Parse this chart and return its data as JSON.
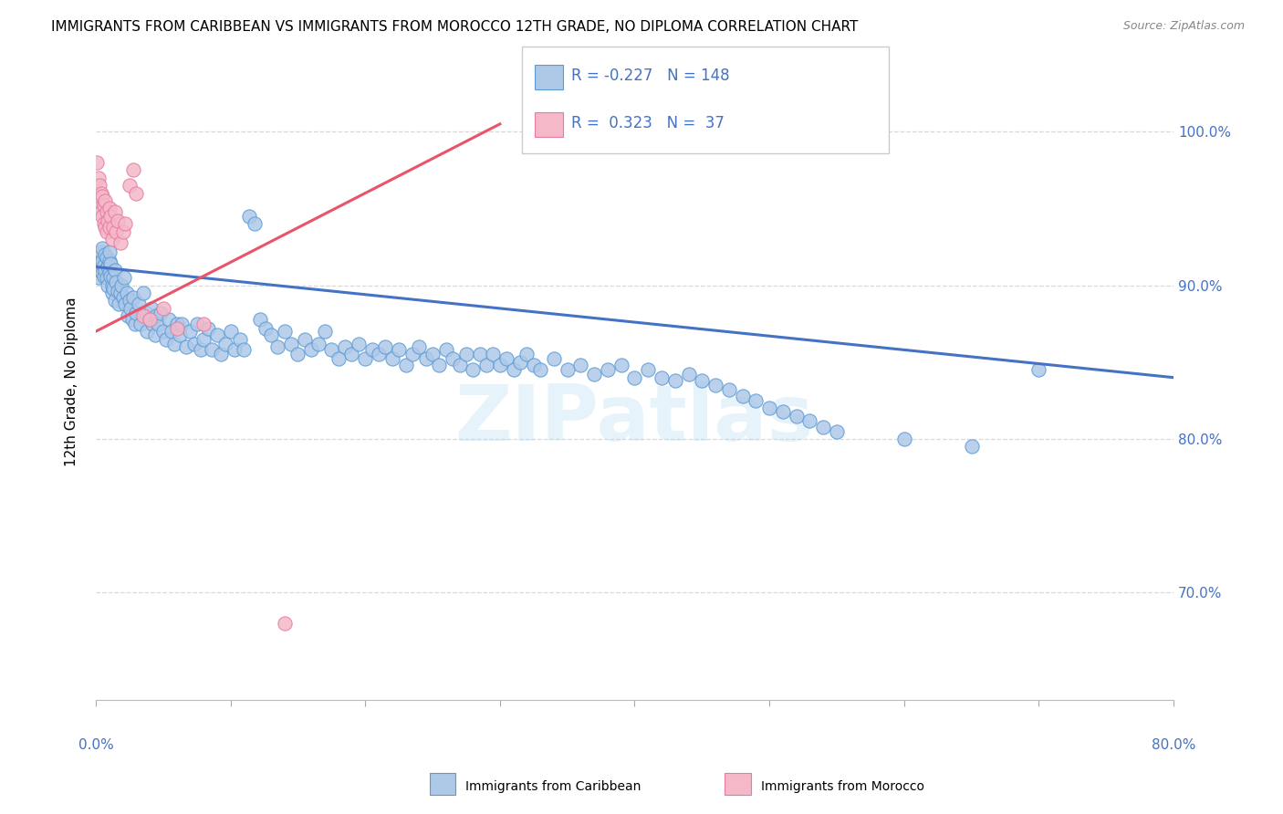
{
  "title": "IMMIGRANTS FROM CARIBBEAN VS IMMIGRANTS FROM MOROCCO 12TH GRADE, NO DIPLOMA CORRELATION CHART",
  "source": "Source: ZipAtlas.com",
  "ylabel": "12th Grade, No Diploma",
  "watermark": "ZIPatlas",
  "blue_color": "#aec8e8",
  "pink_color": "#f4b8c8",
  "blue_edge_color": "#5b9bd5",
  "pink_edge_color": "#e87aa0",
  "blue_line_color": "#4472c4",
  "pink_line_color": "#e8546a",
  "legend_blue_fill": "#aec8e8",
  "legend_pink_fill": "#f4b8c8",
  "tick_color": "#4472c4",
  "grid_color": "#d8d8d8",
  "xlim": [
    0.0,
    0.8
  ],
  "ylim": [
    0.63,
    1.045
  ],
  "ytick_vals": [
    0.7,
    0.8,
    0.9,
    1.0
  ],
  "blue_trend_x": [
    0.0,
    0.8
  ],
  "blue_trend_y": [
    0.912,
    0.84
  ],
  "pink_trend_x": [
    0.0,
    0.3
  ],
  "pink_trend_y": [
    0.87,
    1.005
  ],
  "blue_scatter_x": [
    0.001,
    0.002,
    0.002,
    0.003,
    0.003,
    0.004,
    0.004,
    0.005,
    0.005,
    0.005,
    0.006,
    0.006,
    0.007,
    0.007,
    0.008,
    0.008,
    0.009,
    0.009,
    0.01,
    0.01,
    0.01,
    0.011,
    0.011,
    0.012,
    0.012,
    0.013,
    0.013,
    0.014,
    0.014,
    0.015,
    0.016,
    0.017,
    0.018,
    0.019,
    0.02,
    0.021,
    0.022,
    0.023,
    0.024,
    0.025,
    0.026,
    0.027,
    0.028,
    0.029,
    0.03,
    0.032,
    0.033,
    0.035,
    0.037,
    0.038,
    0.04,
    0.041,
    0.042,
    0.044,
    0.045,
    0.046,
    0.048,
    0.05,
    0.052,
    0.054,
    0.056,
    0.058,
    0.06,
    0.062,
    0.064,
    0.067,
    0.07,
    0.073,
    0.075,
    0.078,
    0.08,
    0.083,
    0.086,
    0.09,
    0.093,
    0.096,
    0.1,
    0.103,
    0.107,
    0.11,
    0.114,
    0.118,
    0.122,
    0.126,
    0.13,
    0.135,
    0.14,
    0.145,
    0.15,
    0.155,
    0.16,
    0.165,
    0.17,
    0.175,
    0.18,
    0.185,
    0.19,
    0.195,
    0.2,
    0.205,
    0.21,
    0.215,
    0.22,
    0.225,
    0.23,
    0.235,
    0.24,
    0.245,
    0.25,
    0.255,
    0.26,
    0.265,
    0.27,
    0.275,
    0.28,
    0.285,
    0.29,
    0.295,
    0.3,
    0.305,
    0.31,
    0.315,
    0.32,
    0.325,
    0.33,
    0.34,
    0.35,
    0.36,
    0.37,
    0.38,
    0.39,
    0.4,
    0.41,
    0.42,
    0.43,
    0.44,
    0.45,
    0.46,
    0.47,
    0.48,
    0.49,
    0.5,
    0.51,
    0.52,
    0.53,
    0.54,
    0.55,
    0.6,
    0.65,
    0.7
  ],
  "blue_scatter_y": [
    0.92,
    0.915,
    0.905,
    0.918,
    0.91,
    0.912,
    0.922,
    0.908,
    0.916,
    0.924,
    0.913,
    0.906,
    0.92,
    0.91,
    0.905,
    0.918,
    0.912,
    0.9,
    0.916,
    0.908,
    0.922,
    0.914,
    0.906,
    0.9,
    0.895,
    0.905,
    0.898,
    0.91,
    0.89,
    0.902,
    0.896,
    0.888,
    0.895,
    0.9,
    0.892,
    0.905,
    0.888,
    0.895,
    0.88,
    0.89,
    0.885,
    0.878,
    0.892,
    0.875,
    0.882,
    0.888,
    0.875,
    0.895,
    0.882,
    0.87,
    0.878,
    0.885,
    0.875,
    0.868,
    0.88,
    0.875,
    0.882,
    0.87,
    0.865,
    0.878,
    0.87,
    0.862,
    0.875,
    0.868,
    0.875,
    0.86,
    0.87,
    0.862,
    0.875,
    0.858,
    0.865,
    0.872,
    0.858,
    0.868,
    0.855,
    0.862,
    0.87,
    0.858,
    0.865,
    0.858,
    0.945,
    0.94,
    0.878,
    0.872,
    0.868,
    0.86,
    0.87,
    0.862,
    0.855,
    0.865,
    0.858,
    0.862,
    0.87,
    0.858,
    0.852,
    0.86,
    0.855,
    0.862,
    0.852,
    0.858,
    0.855,
    0.86,
    0.852,
    0.858,
    0.848,
    0.855,
    0.86,
    0.852,
    0.855,
    0.848,
    0.858,
    0.852,
    0.848,
    0.855,
    0.845,
    0.855,
    0.848,
    0.855,
    0.848,
    0.852,
    0.845,
    0.85,
    0.855,
    0.848,
    0.845,
    0.852,
    0.845,
    0.848,
    0.842,
    0.845,
    0.848,
    0.84,
    0.845,
    0.84,
    0.838,
    0.842,
    0.838,
    0.835,
    0.832,
    0.828,
    0.825,
    0.82,
    0.818,
    0.815,
    0.812,
    0.808,
    0.805,
    0.8,
    0.795,
    0.845
  ],
  "pink_scatter_x": [
    0.001,
    0.001,
    0.002,
    0.002,
    0.003,
    0.003,
    0.004,
    0.004,
    0.005,
    0.005,
    0.006,
    0.006,
    0.007,
    0.007,
    0.008,
    0.008,
    0.009,
    0.01,
    0.01,
    0.011,
    0.012,
    0.013,
    0.014,
    0.015,
    0.016,
    0.018,
    0.02,
    0.022,
    0.025,
    0.028,
    0.03,
    0.035,
    0.04,
    0.05,
    0.06,
    0.08,
    0.14
  ],
  "pink_scatter_y": [
    0.98,
    0.96,
    0.97,
    0.955,
    0.965,
    0.95,
    0.96,
    0.948,
    0.958,
    0.945,
    0.952,
    0.94,
    0.955,
    0.938,
    0.948,
    0.935,
    0.942,
    0.95,
    0.938,
    0.945,
    0.93,
    0.938,
    0.948,
    0.935,
    0.942,
    0.928,
    0.935,
    0.94,
    0.965,
    0.975,
    0.96,
    0.88,
    0.878,
    0.885,
    0.872,
    0.875,
    0.68
  ]
}
